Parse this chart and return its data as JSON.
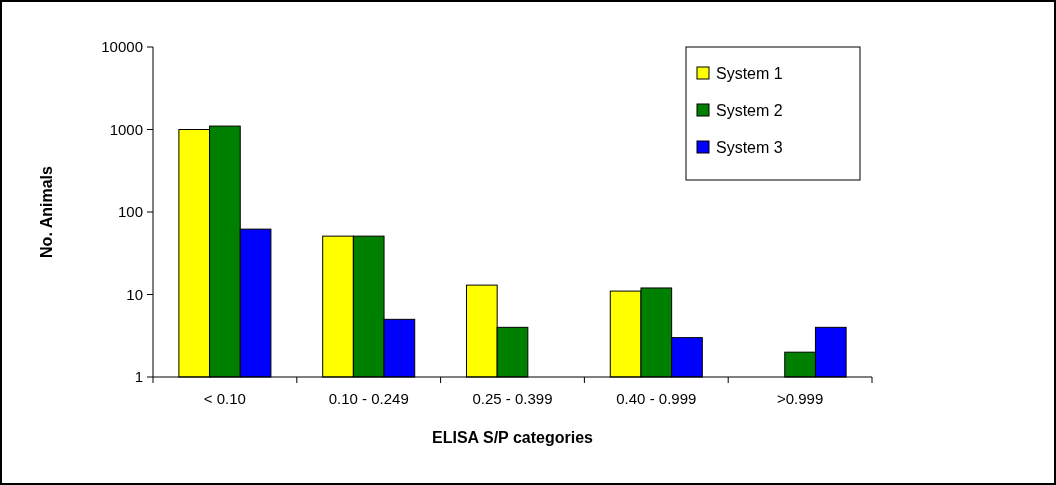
{
  "chart_data": {
    "type": "bar",
    "xlabel": "ELISA S/P categories",
    "ylabel": "No. Animals",
    "log": true,
    "categories": [
      "< 0.10",
      "0.10 - 0.249",
      "0.25 - 0.399",
      "0.40 - 0.999",
      ">0.999"
    ],
    "series": [
      {
        "name": "System 1",
        "color": "#ffff00",
        "values": [
          1000,
          51,
          13,
          11,
          null
        ]
      },
      {
        "name": "System 2",
        "color": "#008000",
        "values": [
          1100,
          51,
          4,
          12,
          2
        ]
      },
      {
        "name": "System 3",
        "color": "#0000ff",
        "values": [
          62,
          5,
          null,
          3,
          4
        ]
      }
    ],
    "ylim": [
      1,
      10000
    ],
    "yticks": [
      1,
      10,
      100,
      1000,
      10000
    ],
    "grid": false,
    "legend": "top right"
  }
}
